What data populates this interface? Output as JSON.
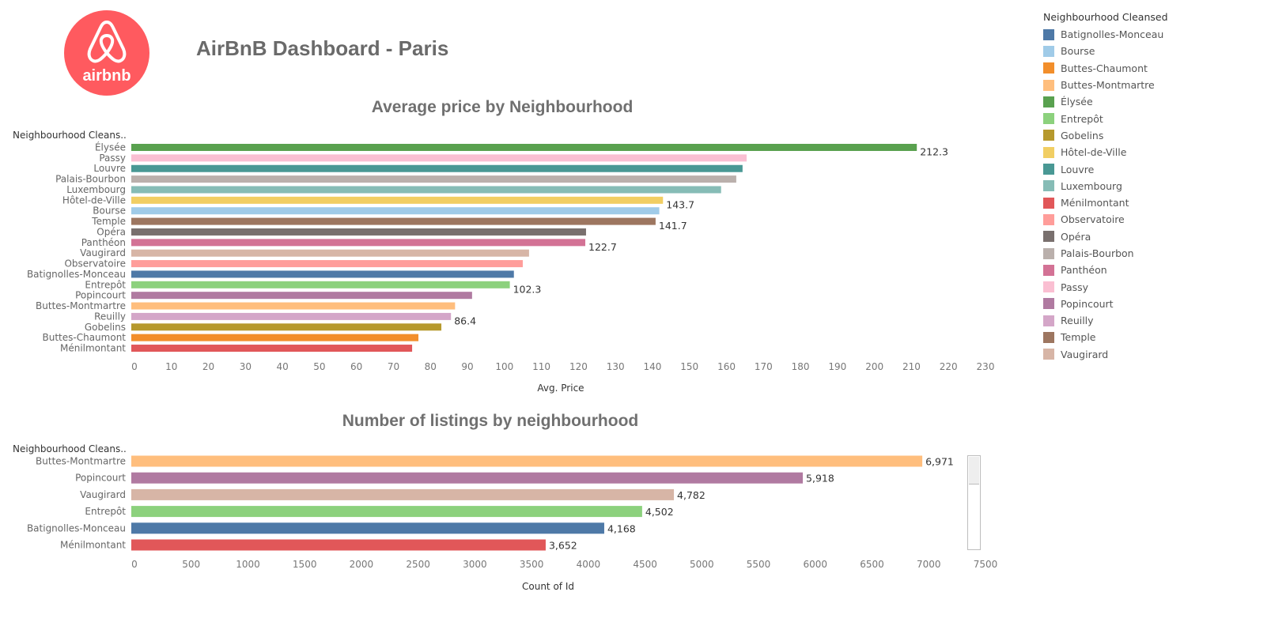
{
  "logo": {
    "text": "airbnb",
    "color": "#ff5a5f"
  },
  "title": "AirBnB Dashboard - Paris",
  "colors": {
    "Batignolles-Monceau": "#4e79a7",
    "Bourse": "#a0cbe8",
    "Buttes-Chaumont": "#f28e2b",
    "Buttes-Montmartre": "#ffbe7d",
    "Élysée": "#59a14f",
    "Entrepôt": "#8cd17d",
    "Gobelins": "#b6992d",
    "Hôtel-de-Ville": "#f1ce63",
    "Louvre": "#499894",
    "Luxembourg": "#86bcb6",
    "Ménilmontant": "#e15759",
    "Observatoire": "#ff9d9a",
    "Opéra": "#79706e",
    "Palais-Bourbon": "#bab0ac",
    "Panthéon": "#d37295",
    "Passy": "#fabfd2",
    "Popincourt": "#b07aa1",
    "Reuilly": "#d4a6c8",
    "Temple": "#9d7660",
    "Vaugirard": "#d7b5a6"
  },
  "legend": {
    "title": "Neighbourhood Cleansed",
    "items": [
      "Batignolles-Monceau",
      "Bourse",
      "Buttes-Chaumont",
      "Buttes-Montmartre",
      "Élysée",
      "Entrepôt",
      "Gobelins",
      "Hôtel-de-Ville",
      "Louvre",
      "Luxembourg",
      "Ménilmontant",
      "Observatoire",
      "Opéra",
      "Palais-Bourbon",
      "Panthéon",
      "Passy",
      "Popincourt",
      "Reuilly",
      "Temple",
      "Vaugirard"
    ]
  },
  "chart_data": [
    {
      "type": "bar",
      "orientation": "horizontal",
      "title": "Average price by Neighbourhood",
      "row_header": "Neighbourhood Cleans..",
      "xlabel": "Avg. Price",
      "xlim": [
        0,
        230
      ],
      "xticks": [
        0,
        10,
        20,
        30,
        40,
        50,
        60,
        70,
        80,
        90,
        100,
        110,
        120,
        130,
        140,
        150,
        160,
        170,
        180,
        190,
        200,
        210,
        220,
        230
      ],
      "categories": [
        "Élysée",
        "Passy",
        "Louvre",
        "Palais-Bourbon",
        "Luxembourg",
        "Hôtel-de-Ville",
        "Bourse",
        "Temple",
        "Opéra",
        "Panthéon",
        "Vaugirard",
        "Observatoire",
        "Batignolles-Monceau",
        "Entrepôt",
        "Popincourt",
        "Buttes-Montmartre",
        "Reuilly",
        "Gobelins",
        "Buttes-Chaumont",
        "Ménilmontant"
      ],
      "values": [
        212.3,
        166.3,
        165.2,
        163.5,
        159.4,
        143.7,
        142.7,
        141.7,
        122.9,
        122.7,
        107.5,
        105.8,
        103.4,
        102.3,
        92.1,
        87.5,
        86.4,
        83.8,
        77.6,
        75.9
      ],
      "data_labels": {
        "Élysée": "212.3",
        "Hôtel-de-Ville": "143.7",
        "Temple": "141.7",
        "Panthéon": "122.7",
        "Entrepôt": "102.3",
        "Reuilly": "86.4"
      }
    },
    {
      "type": "bar",
      "orientation": "horizontal",
      "title": "Number of listings by neighbourhood",
      "row_header": "Neighbourhood Cleans..",
      "xlabel": "Count of Id",
      "xlim": [
        0,
        7500
      ],
      "xticks": [
        0,
        500,
        1000,
        1500,
        2000,
        2500,
        3000,
        3500,
        4000,
        4500,
        5000,
        5500,
        6000,
        6500,
        7000,
        7500
      ],
      "categories": [
        "Buttes-Montmartre",
        "Popincourt",
        "Vaugirard",
        "Entrepôt",
        "Batignolles-Monceau",
        "Ménilmontant"
      ],
      "values": [
        6971,
        5918,
        4782,
        4502,
        4168,
        3652
      ],
      "data_labels": {
        "Buttes-Montmartre": "6,971",
        "Popincourt": "5,918",
        "Vaugirard": "4,782",
        "Entrepôt": "4,502",
        "Batignolles-Monceau": "4,168",
        "Ménilmontant": "3,652"
      }
    }
  ]
}
